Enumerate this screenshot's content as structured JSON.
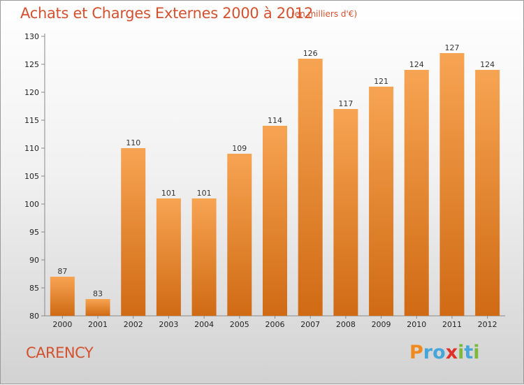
{
  "chart_data": {
    "type": "bar",
    "title": "Achats et Charges Externes 2000 à 2012",
    "subtitle": "(en milliers d'€)",
    "categories": [
      "2000",
      "2001",
      "2002",
      "2003",
      "2004",
      "2005",
      "2006",
      "2007",
      "2008",
      "2009",
      "2010",
      "2011",
      "2012"
    ],
    "values": [
      87,
      83,
      110,
      101,
      101,
      109,
      114,
      126,
      117,
      121,
      124,
      127,
      124
    ],
    "ylim": [
      80,
      130
    ],
    "yticks": [
      80,
      85,
      90,
      95,
      100,
      105,
      110,
      115,
      120,
      125,
      130
    ],
    "bar_color": "#f0913a",
    "grid": false,
    "legend": "none"
  },
  "commune": "CARENCY",
  "logo": {
    "text": "Proxiti",
    "letters": [
      {
        "ch": "P",
        "color": "#f08a1c"
      },
      {
        "ch": "r",
        "color": "#46a6d9"
      },
      {
        "ch": "o",
        "color": "#46a6d9"
      },
      {
        "ch": "x",
        "color": "#e0302a"
      },
      {
        "ch": "i",
        "color": "#7db83a"
      },
      {
        "ch": "t",
        "color": "#46a6d9"
      },
      {
        "ch": "i",
        "color": "#7db83a"
      }
    ]
  }
}
